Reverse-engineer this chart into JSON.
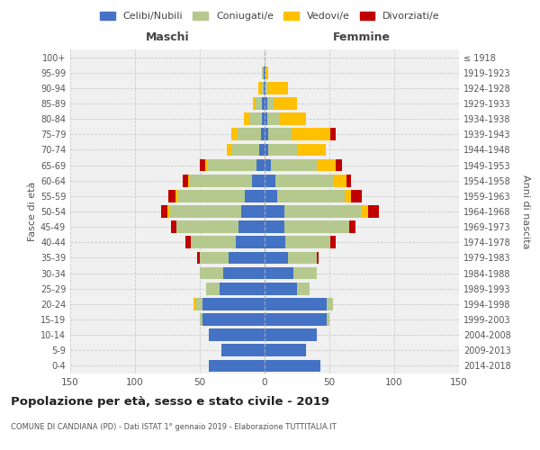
{
  "age_groups": [
    "0-4",
    "5-9",
    "10-14",
    "15-19",
    "20-24",
    "25-29",
    "30-34",
    "35-39",
    "40-44",
    "45-49",
    "50-54",
    "55-59",
    "60-64",
    "65-69",
    "70-74",
    "75-79",
    "80-84",
    "85-89",
    "90-94",
    "95-99",
    "100+"
  ],
  "birth_years": [
    "2014-2018",
    "2009-2013",
    "2004-2008",
    "1999-2003",
    "1994-1998",
    "1989-1993",
    "1984-1988",
    "1979-1983",
    "1974-1978",
    "1969-1973",
    "1964-1968",
    "1959-1963",
    "1954-1958",
    "1949-1953",
    "1944-1948",
    "1939-1943",
    "1934-1938",
    "1929-1933",
    "1924-1928",
    "1919-1923",
    "≤ 1918"
  ],
  "maschi": {
    "celibi": [
      43,
      33,
      43,
      48,
      48,
      35,
      32,
      28,
      22,
      20,
      18,
      15,
      10,
      6,
      4,
      3,
      2,
      2,
      1,
      1,
      0
    ],
    "coniugati": [
      0,
      0,
      0,
      2,
      5,
      10,
      18,
      22,
      35,
      48,
      55,
      52,
      48,
      38,
      22,
      18,
      10,
      5,
      2,
      1,
      0
    ],
    "vedovi": [
      0,
      0,
      0,
      0,
      2,
      0,
      0,
      0,
      0,
      0,
      2,
      2,
      1,
      2,
      3,
      5,
      4,
      2,
      2,
      0,
      0
    ],
    "divorziati": [
      0,
      0,
      0,
      0,
      0,
      0,
      0,
      2,
      4,
      4,
      5,
      5,
      4,
      4,
      0,
      0,
      0,
      0,
      0,
      0,
      0
    ]
  },
  "femmine": {
    "nubili": [
      43,
      32,
      40,
      48,
      48,
      25,
      22,
      18,
      16,
      15,
      15,
      10,
      8,
      5,
      3,
      3,
      2,
      2,
      1,
      1,
      0
    ],
    "coniugate": [
      0,
      0,
      0,
      2,
      5,
      10,
      18,
      22,
      35,
      50,
      60,
      52,
      45,
      35,
      22,
      18,
      10,
      5,
      2,
      0,
      0
    ],
    "vedove": [
      0,
      0,
      0,
      0,
      0,
      0,
      0,
      0,
      0,
      0,
      5,
      5,
      10,
      15,
      22,
      30,
      20,
      18,
      15,
      2,
      0
    ],
    "divorziate": [
      0,
      0,
      0,
      0,
      0,
      0,
      0,
      2,
      4,
      5,
      8,
      8,
      4,
      5,
      0,
      4,
      0,
      0,
      0,
      0,
      0
    ]
  },
  "colors": {
    "celibi_nubili": "#4472c4",
    "coniugati": "#b5c98e",
    "vedovi": "#ffc000",
    "divorziati": "#c00000"
  },
  "xlim": 150,
  "title": "Popolazione per età, sesso e stato civile - 2019",
  "subtitle": "COMUNE DI CANDIANA (PD) - Dati ISTAT 1° gennaio 2019 - Elaborazione TUTTITALIA.IT",
  "ylabel_left": "Fasce di età",
  "ylabel_right": "Anni di nascita",
  "xlabel_left": "Maschi",
  "xlabel_right": "Femmine",
  "legend_labels": [
    "Celibi/Nubili",
    "Coniugati/e",
    "Vedovi/e",
    "Divorziati/e"
  ],
  "bg_color": "#f0f0f0",
  "grid_color": "#cccccc"
}
